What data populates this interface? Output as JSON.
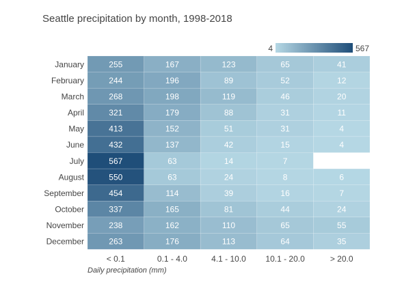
{
  "chart_data": {
    "type": "heatmap",
    "title": "Seattle precipitation by month, 1998-2018",
    "xlabel": "Daily precipitation (mm)",
    "ylabel": "",
    "columns": [
      "< 0.1",
      "0.1 - 4.0",
      "4.1 - 10.0",
      "10.1 - 20.0",
      "> 20.0"
    ],
    "rows": [
      "January",
      "February",
      "March",
      "April",
      "May",
      "June",
      "July",
      "August",
      "September",
      "October",
      "November",
      "December"
    ],
    "values": [
      [
        255,
        167,
        123,
        65,
        41
      ],
      [
        244,
        196,
        89,
        52,
        12
      ],
      [
        268,
        198,
        119,
        46,
        20
      ],
      [
        321,
        179,
        88,
        31,
        11
      ],
      [
        413,
        152,
        51,
        31,
        4
      ],
      [
        432,
        137,
        42,
        15,
        4
      ],
      [
        567,
        63,
        14,
        7,
        null
      ],
      [
        550,
        63,
        24,
        8,
        6
      ],
      [
        454,
        114,
        39,
        16,
        7
      ],
      [
        337,
        165,
        81,
        44,
        24
      ],
      [
        238,
        162,
        110,
        65,
        55
      ],
      [
        263,
        176,
        113,
        64,
        35
      ]
    ],
    "colorscale": {
      "min": 4,
      "max": 567,
      "min_label": "4",
      "max_label": "567",
      "low_color": "#b5d7e4",
      "high_color": "#1f4e79"
    },
    "legend_position": "top-right"
  }
}
